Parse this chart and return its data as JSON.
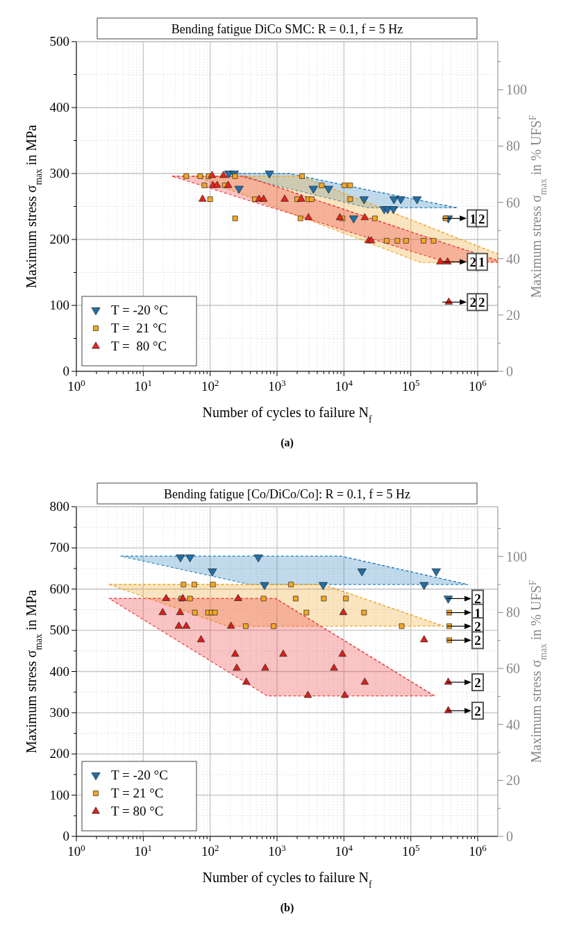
{
  "chart_data": [
    {
      "type": "scatter",
      "title": "Bending fatigue DiCo SMC: R = 0.1, f = 5 Hz",
      "xlabel": "Number of cycles to failure N$_{f}$",
      "ylabel": "Maximum stress σ$_{max}$ in MPa",
      "y2label": "Maximum stress σ$_{max}$ in % UFS$^{F}$",
      "log": "x",
      "grid": true,
      "legend": "bottom left",
      "xlim": [
        1,
        2000000
      ],
      "ylim": [
        0,
        500
      ],
      "y2lim": [
        0,
        117.1
      ],
      "xticks": [
        {
          "value": 1,
          "label": "10$^{0}$"
        },
        {
          "value": 2,
          "label": null
        },
        {
          "value": 3,
          "label": null
        },
        {
          "value": 4,
          "label": null
        },
        {
          "value": 5,
          "label": null
        },
        {
          "value": 6,
          "label": null
        },
        {
          "value": 7,
          "label": null
        },
        {
          "value": 8,
          "label": null
        },
        {
          "value": 9,
          "label": null
        },
        {
          "value": 10,
          "label": "10$^{1}$"
        },
        {
          "value": 20,
          "label": null
        },
        {
          "value": 30,
          "label": null
        },
        {
          "value": 40,
          "label": null
        },
        {
          "value": 50,
          "label": null
        },
        {
          "value": 60,
          "label": null
        },
        {
          "value": 70,
          "label": null
        },
        {
          "value": 80,
          "label": null
        },
        {
          "value": 90,
          "label": null
        },
        {
          "value": 100,
          "label": "10$^{2}$"
        },
        {
          "value": 200,
          "label": null
        },
        {
          "value": 300,
          "label": null
        },
        {
          "value": 400,
          "label": null
        },
        {
          "value": 500,
          "label": null
        },
        {
          "value": 600,
          "label": null
        },
        {
          "value": 700,
          "label": null
        },
        {
          "value": 800,
          "label": null
        },
        {
          "value": 900,
          "label": null
        },
        {
          "value": 1000,
          "label": "10$^{3}$"
        },
        {
          "value": 2000,
          "label": null
        },
        {
          "value": 3000,
          "label": null
        },
        {
          "value": 4000,
          "label": null
        },
        {
          "value": 5000,
          "label": null
        },
        {
          "value": 6000,
          "label": null
        },
        {
          "value": 7000,
          "label": null
        },
        {
          "value": 8000,
          "label": null
        },
        {
          "value": 9000,
          "label": null
        },
        {
          "value": 10000,
          "label": "10$^{4}$"
        },
        {
          "value": 20000,
          "label": null
        },
        {
          "value": 30000,
          "label": null
        },
        {
          "value": 40000,
          "label": null
        },
        {
          "value": 50000,
          "label": null
        },
        {
          "value": 60000,
          "label": null
        },
        {
          "value": 70000,
          "label": null
        },
        {
          "value": 80000,
          "label": null
        },
        {
          "value": 90000,
          "label": null
        },
        {
          "value": 100000,
          "label": "10$^{5}$"
        },
        {
          "value": 200000,
          "label": null
        },
        {
          "value": 300000,
          "label": null
        },
        {
          "value": 400000,
          "label": null
        },
        {
          "value": 500000,
          "label": null
        },
        {
          "value": 600000,
          "label": null
        },
        {
          "value": 700000,
          "label": null
        },
        {
          "value": 800000,
          "label": null
        },
        {
          "value": 900000,
          "label": null
        },
        {
          "value": 1000000,
          "label": "10$^{6}$"
        }
      ],
      "yticks": [
        0,
        {
          "value": 50,
          "label": null
        },
        100,
        {
          "value": 150,
          "label": null
        },
        200,
        {
          "value": 250,
          "label": null
        },
        300,
        {
          "value": 350,
          "label": null
        },
        400,
        {
          "value": 450,
          "label": null
        },
        500
      ],
      "y2ticks": [
        0,
        {
          "value": 10,
          "label": null
        },
        20,
        {
          "value": 30,
          "label": null
        },
        40,
        {
          "value": 50,
          "label": null
        },
        60,
        {
          "value": 70,
          "label": null
        },
        80,
        {
          "value": 90,
          "label": null
        },
        100,
        {
          "value": 110,
          "label": null
        }
      ],
      "series": [
        {
          "type": "line",
          "color": "#2f86c0",
          "line_style": "dashed",
          "x": [
            190,
            1500,
            23000,
            500000
          ],
          "values": [
            300,
            300,
            275,
            248
          ],
          "upper": [
            300,
            300,
            275,
            248
          ],
          "lower": [
            300,
            277,
            248,
            248
          ]
        },
        {
          "type": "line",
          "color": "#f0a830",
          "line_style": "dashed",
          "x": [
            59,
            2300,
            140000,
            2000000
          ],
          "values": [
            296,
            296,
            224,
            178
          ],
          "upper": [
            296,
            296,
            224,
            178
          ],
          "lower": [
            296,
            234,
            165,
            165
          ]
        },
        {
          "type": "line",
          "color": "#f03c3c",
          "line_style": "dashed",
          "x": [
            27,
            330,
            330000,
            2000000
          ],
          "values": [
            296,
            296,
            194,
            168
          ],
          "upper": [
            296,
            296,
            194,
            168
          ],
          "lower": [
            296,
            261,
            166,
            166
          ]
        },
        {
          "name": "T = -20 °C",
          "color": "#1f6fa8",
          "marker": "triangle-down",
          "x": [
            190,
            230,
            770,
            270,
            3500,
            5900,
            14000,
            20000,
            40000,
            45000,
            55000,
            56000,
            71000,
            124000,
            364000
          ],
          "values": [
            300,
            300,
            300,
            277,
            277,
            277,
            232,
            261,
            246,
            246,
            246,
            261,
            261,
            261,
            232
          ]
        },
        {
          "name": "T =  21 °C",
          "color": "#f5a623",
          "marker": "square",
          "x": [
            44,
            71,
            95,
            236,
            2370,
            82,
            166,
            4650,
            10200,
            12400,
            100,
            465,
            2000,
            2950,
            3300,
            12400,
            236,
            2240,
            9500,
            29000,
            330000,
            43600,
            63000,
            85000,
            155000,
            220000
          ],
          "values": [
            296,
            296,
            296,
            296,
            296,
            282,
            282,
            282,
            282,
            282,
            261,
            261,
            261,
            261,
            261,
            261,
            232,
            232,
            232,
            232,
            232,
            198,
            198,
            198,
            198,
            198
          ]
        },
        {
          "name": "T =  80 °C",
          "color": "#e8231a",
          "marker": "triangle",
          "x": [
            107,
            158,
            110,
            127,
            186,
            77,
            540,
            630,
            1300,
            2300,
            2950,
            8700,
            20500,
            23400,
            25600,
            275000,
            355000,
            370000
          ],
          "values": [
            297,
            297,
            282,
            282,
            282,
            261,
            261,
            261,
            261,
            261,
            233,
            233,
            233,
            198,
            198,
            166,
            166,
            105
          ]
        }
      ],
      "annotations": [
        {
          "text": "1",
          "x": 850000,
          "y": 232
        },
        {
          "text": "2",
          "x": 1150000,
          "y": 232
        },
        {
          "text": "2",
          "x": 850000,
          "y": 166
        },
        {
          "text": "1",
          "x": 1150000,
          "y": 166
        },
        {
          "text": "2",
          "x": 850000,
          "y": 105
        },
        {
          "text": "2",
          "x": 1150000,
          "y": 105
        },
        "(a)"
      ]
    },
    {
      "type": "scatter",
      "title": "Bending fatigue [Co/DiCo/Co]: R = 0.1, f = 5 Hz",
      "xlabel": "Number of cycles to failure N$_{f}$",
      "ylabel": "Maximum stress σ$_{max}$ in MPa",
      "y2label": "Maximum stress σ$_{max}$ in % UFS$^{F}$",
      "log": "x",
      "grid": true,
      "legend": "bottom left",
      "xlim": [
        1,
        2000000
      ],
      "ylim": [
        0,
        800
      ],
      "y2lim": [
        0,
        117.8
      ],
      "xticks": [
        {
          "value": 1,
          "label": "10$^{0}$"
        },
        {
          "value": 2,
          "label": null
        },
        {
          "value": 3,
          "label": null
        },
        {
          "value": 4,
          "label": null
        },
        {
          "value": 5,
          "label": null
        },
        {
          "value": 6,
          "label": null
        },
        {
          "value": 7,
          "label": null
        },
        {
          "value": 8,
          "label": null
        },
        {
          "value": 9,
          "label": null
        },
        {
          "value": 10,
          "label": "10$^{1}$"
        },
        {
          "value": 20,
          "label": null
        },
        {
          "value": 30,
          "label": null
        },
        {
          "value": 40,
          "label": null
        },
        {
          "value": 50,
          "label": null
        },
        {
          "value": 60,
          "label": null
        },
        {
          "value": 70,
          "label": null
        },
        {
          "value": 80,
          "label": null
        },
        {
          "value": 90,
          "label": null
        },
        {
          "value": 100,
          "label": "10$^{2}$"
        },
        {
          "value": 200,
          "label": null
        },
        {
          "value": 300,
          "label": null
        },
        {
          "value": 400,
          "label": null
        },
        {
          "value": 500,
          "label": null
        },
        {
          "value": 600,
          "label": null
        },
        {
          "value": 700,
          "label": null
        },
        {
          "value": 800,
          "label": null
        },
        {
          "value": 900,
          "label": null
        },
        {
          "value": 1000,
          "label": "10$^{3}$"
        },
        {
          "value": 2000,
          "label": null
        },
        {
          "value": 3000,
          "label": null
        },
        {
          "value": 4000,
          "label": null
        },
        {
          "value": 5000,
          "label": null
        },
        {
          "value": 6000,
          "label": null
        },
        {
          "value": 7000,
          "label": null
        },
        {
          "value": 8000,
          "label": null
        },
        {
          "value": 9000,
          "label": null
        },
        {
          "value": 10000,
          "label": "10$^{4}$"
        },
        {
          "value": 20000,
          "label": null
        },
        {
          "value": 30000,
          "label": null
        },
        {
          "value": 40000,
          "label": null
        },
        {
          "value": 50000,
          "label": null
        },
        {
          "value": 60000,
          "label": null
        },
        {
          "value": 70000,
          "label": null
        },
        {
          "value": 80000,
          "label": null
        },
        {
          "value": 90000,
          "label": null
        },
        {
          "value": 100000,
          "label": "10$^{5}$"
        },
        {
          "value": 200000,
          "label": null
        },
        {
          "value": 300000,
          "label": null
        },
        {
          "value": 400000,
          "label": null
        },
        {
          "value": 500000,
          "label": null
        },
        {
          "value": 600000,
          "label": null
        },
        {
          "value": 700000,
          "label": null
        },
        {
          "value": 800000,
          "label": null
        },
        {
          "value": 900000,
          "label": null
        },
        {
          "value": 1000000,
          "label": "10$^{6}$"
        }
      ],
      "yticks": [
        0,
        {
          "value": 50,
          "label": null
        },
        100,
        {
          "value": 150,
          "label": null
        },
        200,
        {
          "value": 250,
          "label": null
        },
        300,
        {
          "value": 350,
          "label": null
        },
        400,
        {
          "value": 450,
          "label": null
        },
        500,
        {
          "value": 550,
          "label": null
        },
        600,
        {
          "value": 650,
          "label": null
        },
        700,
        {
          "value": 750,
          "label": null
        },
        800
      ],
      "y2ticks": [
        0,
        {
          "value": 10,
          "label": null
        },
        20,
        {
          "value": 30,
          "label": null
        },
        40,
        {
          "value": 50,
          "label": null
        },
        60,
        {
          "value": 70,
          "label": null
        },
        80,
        {
          "value": 90,
          "label": null
        },
        100,
        {
          "value": 110,
          "label": null
        }
      ],
      "series": [
        {
          "type": "line",
          "color": "#2f86c0",
          "line_style": "dashed",
          "x": [
            4.6,
            400,
            9100,
            710000
          ],
          "values": [
            680,
            680,
            680,
            611
          ],
          "upper": [
            680,
            680,
            680,
            611
          ],
          "lower": [
            680,
            611,
            611,
            611
          ]
        },
        {
          "type": "line",
          "color": "#f0a830",
          "line_style": "dashed",
          "x": [
            3.1,
            182,
            4900,
            310000
          ],
          "values": [
            611,
            611,
            611,
            510
          ],
          "upper": [
            611,
            611,
            611,
            510
          ],
          "lower": [
            611,
            510,
            510,
            510
          ]
        },
        {
          "type": "line",
          "color": "#f03c3c",
          "line_style": "dashed",
          "x": [
            3.1,
            710,
            960,
            225000
          ],
          "values": [
            577,
            577,
            577,
            341
          ],
          "upper": [
            577,
            577,
            577,
            341
          ],
          "lower": [
            577,
            341,
            341,
            341
          ]
        },
        {
          "name": "T = -20 °C",
          "color": "#1f6fa8",
          "marker": "triangle-down",
          "x": [
            36,
            50,
            525,
            108,
            650,
            18600,
            240000,
            4900,
            158000,
            363000
          ],
          "values": [
            677,
            677,
            677,
            643,
            610,
            643,
            643,
            610,
            610,
            577
          ]
        },
        {
          "name": "T = 21 °C",
          "color": "#f5a623",
          "marker": "square",
          "x": [
            40,
            58,
            110,
            1620,
            37,
            50,
            630,
            1900,
            5000,
            10700,
            59,
            93,
            105,
            118,
            2750,
            20000,
            340,
            890,
            73000,
            375000,
            375000,
            375000
          ],
          "values": [
            611,
            611,
            611,
            611,
            577,
            577,
            577,
            577,
            577,
            577,
            543,
            543,
            543,
            543,
            543,
            543,
            510,
            510,
            510,
            543,
            510,
            476
          ]
        },
        {
          "name": "T = 80 °C",
          "color": "#d8201a",
          "marker": "triangle",
          "x": [
            22,
            39,
            262,
            19.5,
            35.5,
            34,
            44,
            205,
            73,
            237,
            1240,
            250,
            665,
            347,
            2900,
            9800,
            158000,
            9500,
            7100,
            20500,
            10300,
            363000,
            363000
          ],
          "values": [
            577,
            577,
            577,
            543,
            543,
            510,
            510,
            510,
            477,
            442,
            442,
            408,
            408,
            374,
            342,
            543,
            477,
            442,
            408,
            374,
            342,
            374,
            305
          ]
        }
      ],
      "annotations": [
        {
          "text": "2",
          "x": 1000000,
          "y": 577
        },
        {
          "text": "1",
          "x": 1000000,
          "y": 543
        },
        {
          "text": "2",
          "x": 1000000,
          "y": 510
        },
        {
          "text": "2",
          "x": 1000000,
          "y": 476
        },
        {
          "text": "2",
          "x": 1000000,
          "y": 374
        },
        {
          "text": "2",
          "x": 1000000,
          "y": 305
        },
        "(b)"
      ]
    }
  ]
}
